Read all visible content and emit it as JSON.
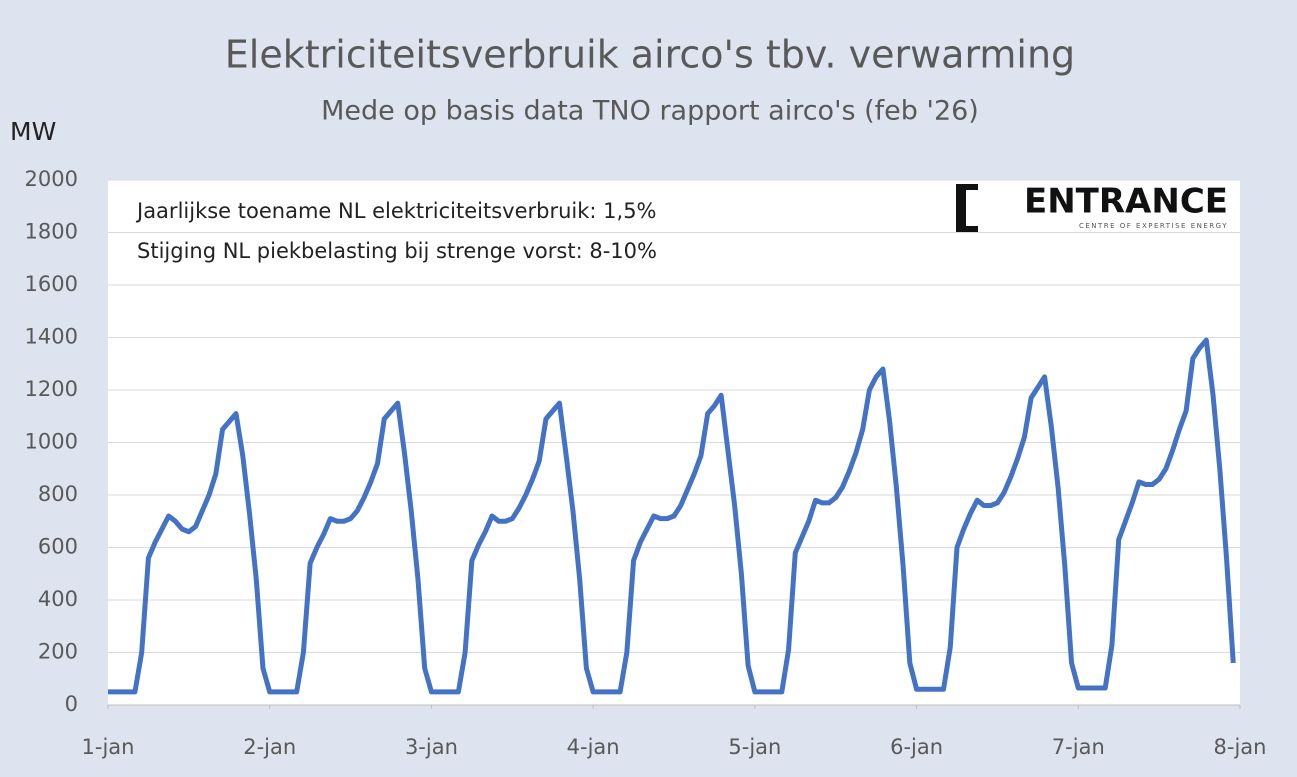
{
  "chart_data": {
    "type": "line",
    "title": "Elektriciteitsverbruik airco's tbv. verwarming",
    "subtitle": "Mede op basis data TNO rapport airco's (feb '26)",
    "y_label": "MW",
    "annotations": [
      "Jaarlijkse toename NL elektriciteitsverbruik: 1,5%",
      "Stijging NL piekbelasting bij strenge vorst: 8-10%"
    ],
    "logo": {
      "name": "ENTRANCE",
      "tagline": "CENTRE OF EXPERTISE ENERGY"
    },
    "x": [
      0,
      1,
      2,
      3,
      4,
      5,
      6,
      7,
      8,
      9,
      10,
      11,
      12,
      13,
      14,
      15,
      16,
      17,
      18,
      19,
      20,
      21,
      22,
      23,
      24,
      25,
      26,
      27,
      28,
      29,
      30,
      31,
      32,
      33,
      34,
      35,
      36,
      37,
      38,
      39,
      40,
      41,
      42,
      43,
      44,
      45,
      46,
      47,
      48,
      49,
      50,
      51,
      52,
      53,
      54,
      55,
      56,
      57,
      58,
      59,
      60,
      61,
      62,
      63,
      64,
      65,
      66,
      67,
      68,
      69,
      70,
      71,
      72,
      73,
      74,
      75,
      76,
      77,
      78,
      79,
      80,
      81,
      82,
      83,
      84,
      85,
      86,
      87,
      88,
      89,
      90,
      91,
      92,
      93,
      94,
      95,
      96,
      97,
      98,
      99,
      100,
      101,
      102,
      103,
      104,
      105,
      106,
      107,
      108,
      109,
      110,
      111,
      112,
      113,
      114,
      115,
      116,
      117,
      118,
      119,
      120,
      121,
      122,
      123,
      124,
      125,
      126,
      127,
      128,
      129,
      130,
      131,
      132,
      133,
      134,
      135,
      136,
      137,
      138,
      139,
      140,
      141,
      142,
      143,
      144,
      145,
      146,
      147,
      148,
      149,
      150,
      151,
      152,
      153,
      154,
      155,
      156,
      157,
      158,
      159,
      160,
      161,
      162,
      163,
      164,
      165,
      166,
      167
    ],
    "series": [
      {
        "name": "Elektriciteitsverbruik",
        "color": "#4472c4",
        "values": [
          50,
          50,
          50,
          50,
          50,
          200,
          560,
          620,
          670,
          720,
          700,
          670,
          660,
          680,
          740,
          800,
          880,
          1050,
          1080,
          1110,
          950,
          730,
          480,
          140,
          50,
          50,
          50,
          50,
          50,
          200,
          540,
          600,
          650,
          710,
          700,
          700,
          710,
          740,
          790,
          850,
          920,
          1090,
          1120,
          1150,
          960,
          740,
          480,
          140,
          50,
          50,
          50,
          50,
          50,
          200,
          550,
          610,
          660,
          720,
          700,
          700,
          710,
          750,
          800,
          860,
          930,
          1090,
          1120,
          1150,
          950,
          740,
          480,
          140,
          50,
          50,
          50,
          50,
          50,
          200,
          550,
          620,
          670,
          720,
          710,
          710,
          720,
          760,
          820,
          880,
          950,
          1110,
          1140,
          1180,
          970,
          760,
          500,
          150,
          50,
          50,
          50,
          50,
          50,
          210,
          580,
          640,
          700,
          780,
          770,
          770,
          790,
          830,
          890,
          960,
          1050,
          1200,
          1250,
          1280,
          1080,
          830,
          530,
          160,
          60,
          60,
          60,
          60,
          60,
          220,
          600,
          670,
          730,
          780,
          760,
          760,
          770,
          810,
          870,
          940,
          1020,
          1170,
          1210,
          1250,
          1060,
          830,
          530,
          160,
          65,
          65,
          65,
          65,
          65,
          230,
          630,
          700,
          770,
          850,
          840,
          840,
          860,
          900,
          970,
          1050,
          1120,
          1320,
          1360,
          1390,
          1180,
          900,
          560,
          160
        ]
      }
    ],
    "xlim": [
      0,
      168
    ],
    "xticks": [
      {
        "value": 0,
        "label": "1-jan"
      },
      {
        "value": 24,
        "label": "2-jan"
      },
      {
        "value": 48,
        "label": "3-jan"
      },
      {
        "value": 72,
        "label": "4-jan"
      },
      {
        "value": 96,
        "label": "5-jan"
      },
      {
        "value": 120,
        "label": "6-jan"
      },
      {
        "value": 144,
        "label": "7-jan"
      },
      {
        "value": 168,
        "label": "8-jan"
      }
    ],
    "ylim": [
      0,
      2000
    ],
    "yticks": [
      0,
      200,
      400,
      600,
      800,
      1000,
      1200,
      1400,
      1600,
      1800,
      2000
    ],
    "grid": true
  }
}
